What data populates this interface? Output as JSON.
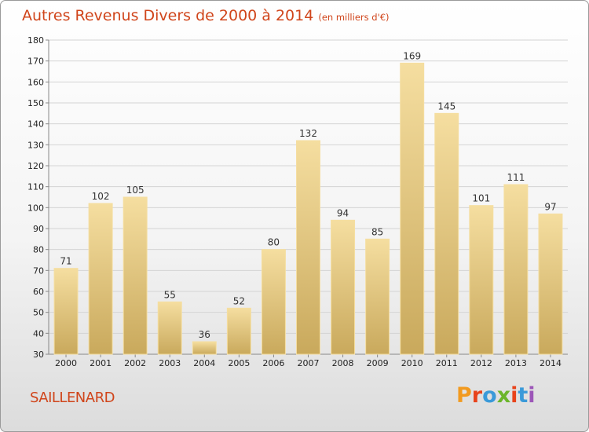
{
  "header": {
    "title": "Autres Revenus Divers de 2000 à 2014",
    "subtitle": "(en milliers d'€)"
  },
  "footer": {
    "place": "SAILLENARD",
    "logo": "Proxiti",
    "logo_colors": [
      "#f29a1f",
      "#e8431b",
      "#3a9ad9",
      "#6bb52a",
      "#e8431b",
      "#3a9ad9",
      "#9c56b8"
    ]
  },
  "colors": {
    "bar_light": "#f5dea0",
    "bar_dark": "#c9a95c",
    "accent": "#d0451b",
    "grid": "#d4d4d4"
  },
  "chart_data": {
    "type": "bar",
    "categories": [
      "2000",
      "2001",
      "2002",
      "2003",
      "2004",
      "2005",
      "2006",
      "2007",
      "2008",
      "2009",
      "2010",
      "2011",
      "2012",
      "2013",
      "2014"
    ],
    "values": [
      71,
      102,
      105,
      55,
      36,
      52,
      80,
      132,
      94,
      85,
      169,
      145,
      101,
      111,
      97
    ],
    "title": "Autres Revenus Divers de 2000 à 2014",
    "subtitle": "(en milliers d'€)",
    "xlabel": "",
    "ylabel": "",
    "ylim": [
      30,
      180
    ],
    "yticks": [
      30,
      40,
      50,
      60,
      70,
      80,
      90,
      100,
      110,
      120,
      130,
      140,
      150,
      160,
      170,
      180
    ],
    "grid": true,
    "data_labels": true
  }
}
